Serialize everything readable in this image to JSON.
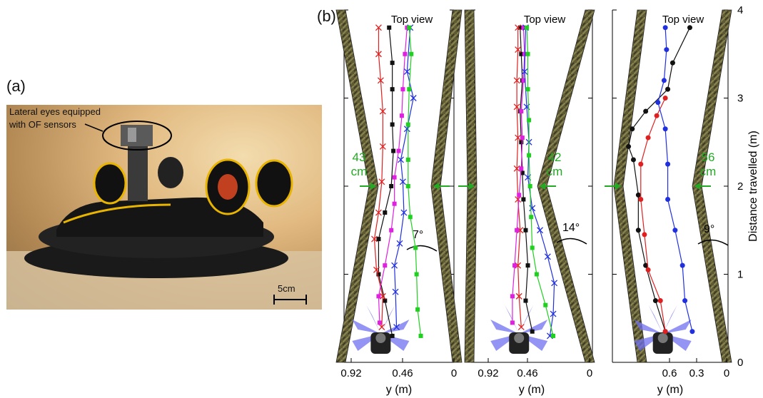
{
  "panel_a": {
    "label": "(a)",
    "callout": [
      "Lateral eyes equipped",
      "with OF sensors"
    ],
    "scale_bar": "5cm"
  },
  "panel_b": {
    "label": "(b)",
    "top_view": "Top view",
    "xlabel": "y (m)",
    "ylabel": "Distance travelled (m)",
    "y_ticks": [
      "0",
      "1",
      "2",
      "3",
      "4"
    ],
    "colors": {
      "black": "#111111",
      "red": "#e02020",
      "magenta": "#e020e0",
      "blue": "#2030e0",
      "green": "#20d020",
      "wall_green": "#22aa22"
    }
  },
  "chart_data": [
    {
      "type": "line",
      "title": "",
      "x_ticks": [
        "0.92",
        "0.46",
        "0"
      ],
      "xlabel": "y (m)",
      "ylabel": "Distance travelled (m)",
      "ylim": [
        0,
        4
      ],
      "xlim": [
        0.92,
        0
      ],
      "annotations": [
        "43",
        "cm",
        "7°",
        "Top view"
      ],
      "series": [
        {
          "color": "black",
          "marker": "square",
          "points": [
            [
              0.53,
              0.3
            ],
            [
              0.6,
              0.7
            ],
            [
              0.66,
              1.0
            ],
            [
              0.66,
              1.4
            ],
            [
              0.6,
              1.7
            ],
            [
              0.54,
              2.0
            ],
            [
              0.52,
              2.4
            ],
            [
              0.53,
              2.7
            ],
            [
              0.53,
              3.1
            ],
            [
              0.53,
              3.4
            ],
            [
              0.56,
              3.8
            ]
          ]
        },
        {
          "color": "red",
          "marker": "x",
          "points": [
            [
              0.63,
              0.4
            ],
            [
              0.62,
              0.75
            ],
            [
              0.68,
              1.05
            ],
            [
              0.7,
              1.4
            ],
            [
              0.66,
              1.7
            ],
            [
              0.63,
              2.05
            ],
            [
              0.62,
              2.45
            ],
            [
              0.62,
              2.85
            ],
            [
              0.64,
              3.2
            ],
            [
              0.66,
              3.5
            ],
            [
              0.66,
              3.8
            ]
          ]
        },
        {
          "color": "magenta",
          "marker": "square",
          "points": [
            [
              0.65,
              0.45
            ],
            [
              0.66,
              0.75
            ],
            [
              0.6,
              1.1
            ],
            [
              0.54,
              1.5
            ],
            [
              0.51,
              1.8
            ],
            [
              0.51,
              2.1
            ],
            [
              0.47,
              2.4
            ],
            [
              0.44,
              2.8
            ],
            [
              0.43,
              3.1
            ],
            [
              0.41,
              3.5
            ],
            [
              0.39,
              3.8
            ]
          ]
        },
        {
          "color": "blue",
          "marker": "x",
          "points": [
            [
              0.49,
              0.4
            ],
            [
              0.5,
              0.8
            ],
            [
              0.51,
              1.1
            ],
            [
              0.46,
              1.35
            ],
            [
              0.42,
              1.7
            ],
            [
              0.43,
              2.05
            ],
            [
              0.45,
              2.3
            ],
            [
              0.39,
              2.65
            ],
            [
              0.33,
              3.0
            ],
            [
              0.39,
              3.3
            ],
            [
              0.36,
              3.8
            ]
          ]
        },
        {
          "color": "green",
          "marker": "square",
          "points": [
            [
              0.26,
              0.3
            ],
            [
              0.29,
              0.6
            ],
            [
              0.3,
              1.0
            ],
            [
              0.31,
              1.3
            ],
            [
              0.36,
              1.65
            ],
            [
              0.38,
              2.0
            ],
            [
              0.38,
              2.3
            ],
            [
              0.38,
              2.7
            ],
            [
              0.37,
              3.1
            ],
            [
              0.35,
              3.5
            ],
            [
              0.37,
              3.8
            ]
          ]
        }
      ]
    },
    {
      "type": "line",
      "title": "",
      "x_ticks": [
        "0.92",
        "0.46",
        "0"
      ],
      "xlabel": "y (m)",
      "ylim": [
        0,
        4
      ],
      "xlim": [
        0.92,
        0
      ],
      "annotations": [
        "42",
        "cm",
        "14°",
        "Top view"
      ],
      "series": [
        {
          "color": "black",
          "marker": "square",
          "points": [
            [
              0.52,
              0.35
            ],
            [
              0.58,
              0.7
            ],
            [
              0.56,
              1.1
            ],
            [
              0.58,
              1.5
            ],
            [
              0.6,
              1.85
            ],
            [
              0.61,
              2.15
            ],
            [
              0.62,
              2.5
            ],
            [
              0.63,
              2.85
            ],
            [
              0.61,
              3.2
            ],
            [
              0.62,
              3.5
            ],
            [
              0.63,
              3.8
            ]
          ]
        },
        {
          "color": "red",
          "marker": "x",
          "points": [
            [
              0.62,
              0.4
            ],
            [
              0.64,
              0.75
            ],
            [
              0.65,
              1.1
            ],
            [
              0.63,
              1.5
            ],
            [
              0.65,
              1.85
            ],
            [
              0.66,
              2.2
            ],
            [
              0.65,
              2.55
            ],
            [
              0.66,
              2.9
            ],
            [
              0.66,
              3.2
            ],
            [
              0.65,
              3.55
            ],
            [
              0.65,
              3.8
            ]
          ]
        },
        {
          "color": "magenta",
          "marker": "square",
          "points": [
            [
              0.7,
              0.45
            ],
            [
              0.7,
              0.75
            ],
            [
              0.68,
              1.1
            ],
            [
              0.66,
              1.5
            ],
            [
              0.64,
              1.9
            ],
            [
              0.62,
              2.2
            ],
            [
              0.61,
              2.55
            ],
            [
              0.62,
              2.85
            ],
            [
              0.6,
              3.2
            ],
            [
              0.59,
              3.5
            ],
            [
              0.6,
              3.8
            ]
          ]
        },
        {
          "color": "blue",
          "marker": "x",
          "points": [
            [
              0.36,
              0.3
            ],
            [
              0.33,
              0.55
            ],
            [
              0.32,
              0.9
            ],
            [
              0.38,
              1.2
            ],
            [
              0.45,
              1.5
            ],
            [
              0.52,
              1.75
            ],
            [
              0.56,
              2.1
            ],
            [
              0.55,
              2.5
            ],
            [
              0.57,
              2.9
            ],
            [
              0.59,
              3.3
            ],
            [
              0.58,
              3.8
            ]
          ]
        },
        {
          "color": "green",
          "marker": "square",
          "points": [
            [
              0.33,
              0.3
            ],
            [
              0.4,
              0.65
            ],
            [
              0.48,
              1.0
            ],
            [
              0.52,
              1.3
            ],
            [
              0.53,
              1.65
            ],
            [
              0.54,
              2.0
            ],
            [
              0.55,
              2.35
            ],
            [
              0.55,
              2.75
            ],
            [
              0.56,
              3.1
            ],
            [
              0.56,
              3.5
            ],
            [
              0.57,
              3.8
            ]
          ]
        }
      ]
    },
    {
      "type": "line",
      "title": "",
      "x_ticks": [
        "0.6",
        "0.3",
        "0"
      ],
      "xlabel": "y (m)",
      "ylim": [
        0,
        4
      ],
      "xlim": [
        1.08,
        0
      ],
      "annotations": [
        "56",
        "cm",
        "9°",
        "Top view"
      ],
      "series": [
        {
          "color": "black",
          "marker": "circle",
          "points": [
            [
              0.5,
              0.35
            ],
            [
              0.58,
              0.7
            ],
            [
              0.66,
              1.1
            ],
            [
              0.72,
              1.5
            ],
            [
              0.72,
              1.9
            ],
            [
              0.76,
              2.3
            ],
            [
              0.8,
              2.45
            ],
            [
              0.77,
              2.65
            ],
            [
              0.66,
              2.85
            ],
            [
              0.48,
              3.1
            ],
            [
              0.44,
              3.4
            ],
            [
              0.3,
              3.8
            ]
          ]
        },
        {
          "color": "red",
          "marker": "circle",
          "points": [
            [
              0.5,
              0.35
            ],
            [
              0.54,
              0.7
            ],
            [
              0.64,
              1.05
            ],
            [
              0.67,
              1.45
            ],
            [
              0.7,
              1.85
            ],
            [
              0.7,
              2.25
            ],
            [
              0.64,
              2.55
            ],
            [
              0.57,
              2.8
            ],
            [
              0.5,
              3.0
            ]
          ]
        },
        {
          "color": "blue",
          "marker": "circle",
          "points": [
            [
              0.28,
              0.35
            ],
            [
              0.34,
              0.7
            ],
            [
              0.36,
              1.1
            ],
            [
              0.42,
              1.5
            ],
            [
              0.48,
              1.85
            ],
            [
              0.48,
              2.25
            ],
            [
              0.5,
              2.65
            ],
            [
              0.56,
              2.95
            ],
            [
              0.51,
              3.2
            ],
            [
              0.49,
              3.55
            ],
            [
              0.5,
              3.8
            ]
          ]
        }
      ]
    }
  ]
}
